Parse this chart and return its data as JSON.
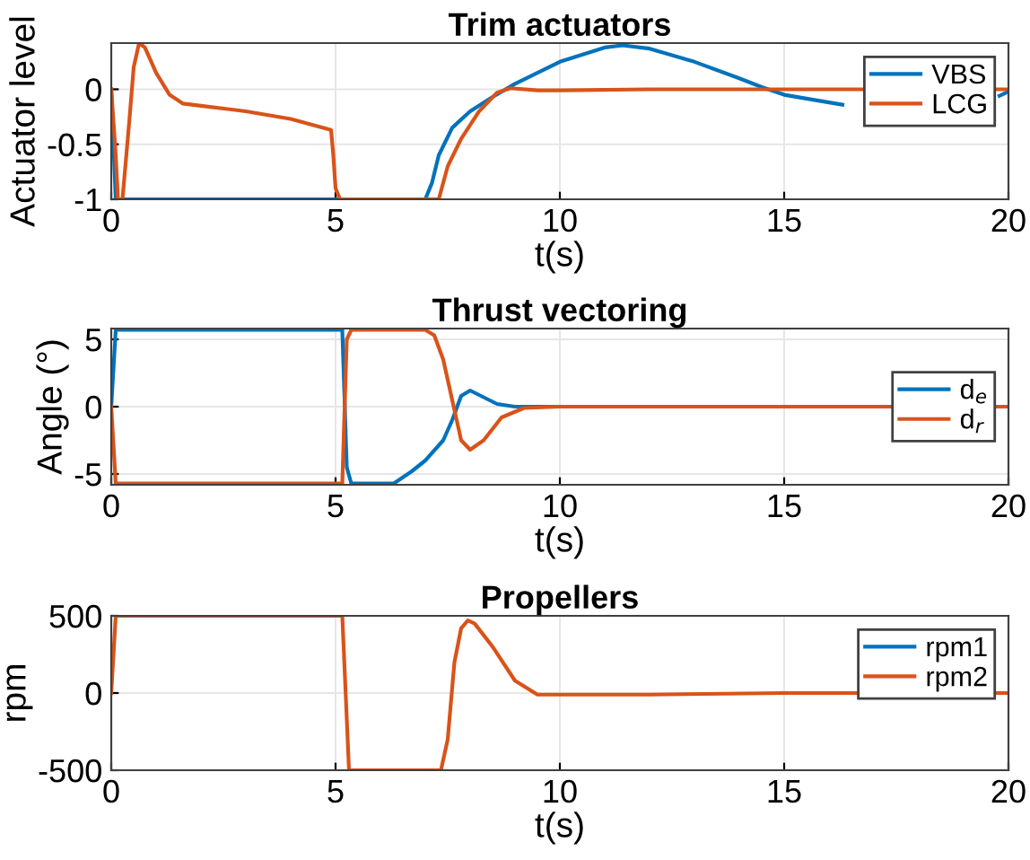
{
  "chart_data": [
    {
      "type": "line",
      "title": "Trim actuators",
      "xlabel": "t(s)",
      "ylabel": "Actuator level",
      "xlim": [
        0,
        20
      ],
      "xticks": [
        0,
        5,
        10,
        15,
        20
      ],
      "ylim": [
        -1,
        0.42
      ],
      "yticks": [
        -1,
        -0.5,
        0
      ],
      "grid": true,
      "legend": "top right",
      "series": [
        {
          "name": "VBS",
          "color": "#0072bd",
          "x": [
            0,
            0.1,
            7.0,
            7.15,
            7.3,
            7.6,
            8.0,
            8.5,
            9,
            10,
            11,
            11.4,
            12,
            13,
            14,
            14.5,
            15,
            16,
            16.3,
            18,
            19.8,
            20
          ],
          "values": [
            0,
            -1,
            -1,
            -0.85,
            -0.6,
            -0.35,
            -0.2,
            -0.07,
            0.05,
            0.25,
            0.38,
            0.4,
            0.37,
            0.25,
            0.1,
            0.02,
            -0.05,
            -0.12,
            -0.14,
            null,
            -0.06,
            -0.02
          ]
        },
        {
          "name": "LCG",
          "color": "#d95319",
          "x": [
            0,
            0.1,
            0.15,
            0.25,
            0.4,
            0.5,
            0.62,
            0.75,
            1.0,
            1.3,
            1.6,
            2,
            3,
            4,
            4.9,
            4.95,
            5.0,
            5.1,
            7.3,
            7.5,
            7.8,
            8.2,
            8.6,
            8.9,
            9.5,
            10,
            12,
            14,
            15,
            20
          ],
          "values": [
            0,
            -0.6,
            -1,
            -1,
            -0.3,
            0.2,
            0.42,
            0.38,
            0.15,
            -0.05,
            -0.13,
            -0.15,
            -0.2,
            -0.27,
            -0.37,
            -0.6,
            -0.9,
            -1,
            -1,
            -0.7,
            -0.45,
            -0.2,
            -0.03,
            0.01,
            -0.01,
            -0.01,
            0,
            0,
            0,
            0
          ]
        }
      ]
    },
    {
      "type": "line",
      "title": "Thrust vectoring",
      "xlabel": "t(s)",
      "ylabel": "Angle (°)",
      "xlim": [
        0,
        20
      ],
      "xticks": [
        0,
        5,
        10,
        15,
        20
      ],
      "ylim": [
        -5.8,
        5.8
      ],
      "yticks": [
        -5,
        0,
        5
      ],
      "grid": true,
      "legend": "right",
      "series": [
        {
          "name": "d$_{e}$",
          "color": "#0072bd",
          "x": [
            0,
            0.1,
            5.15,
            5.25,
            5.35,
            6.3,
            6.7,
            7.0,
            7.4,
            7.6,
            7.8,
            8.0,
            8.3,
            8.6,
            9,
            20
          ],
          "values": [
            0,
            5.7,
            5.7,
            -4.5,
            -5.7,
            -5.7,
            -4.8,
            -4,
            -2.5,
            -1,
            0.8,
            1.2,
            0.7,
            0.2,
            0,
            0
          ]
        },
        {
          "name": "d$_{r}$",
          "color": "#d95319",
          "x": [
            0,
            0.1,
            5.15,
            5.25,
            5.35,
            7.0,
            7.2,
            7.4,
            7.6,
            7.8,
            8.0,
            8.3,
            8.7,
            9.2,
            10,
            20
          ],
          "values": [
            0,
            -5.7,
            -5.7,
            5,
            5.7,
            5.7,
            5.3,
            3.5,
            0.5,
            -2.5,
            -3.2,
            -2.5,
            -0.8,
            -0.1,
            0,
            0
          ]
        }
      ]
    },
    {
      "type": "line",
      "title": "Propellers",
      "xlabel": "t(s)",
      "ylabel": "rpm",
      "xlim": [
        0,
        20
      ],
      "xticks": [
        0,
        5,
        10,
        15,
        20
      ],
      "ylim": [
        -500,
        500
      ],
      "yticks": [
        -500,
        0,
        500
      ],
      "grid": true,
      "legend": "top right",
      "series": [
        {
          "name": "rpm1",
          "color": "#0072bd"
        },
        {
          "name": "rpm2",
          "color": "#d95319",
          "x": [
            0,
            0.1,
            5.15,
            5.3,
            7.35,
            7.5,
            7.65,
            7.8,
            7.95,
            8.1,
            8.5,
            9,
            9.5,
            10,
            12,
            15,
            20
          ],
          "values": [
            0,
            500,
            500,
            -500,
            -500,
            -300,
            200,
            420,
            470,
            450,
            300,
            80,
            -10,
            -10,
            -10,
            0,
            0
          ]
        }
      ]
    }
  ]
}
